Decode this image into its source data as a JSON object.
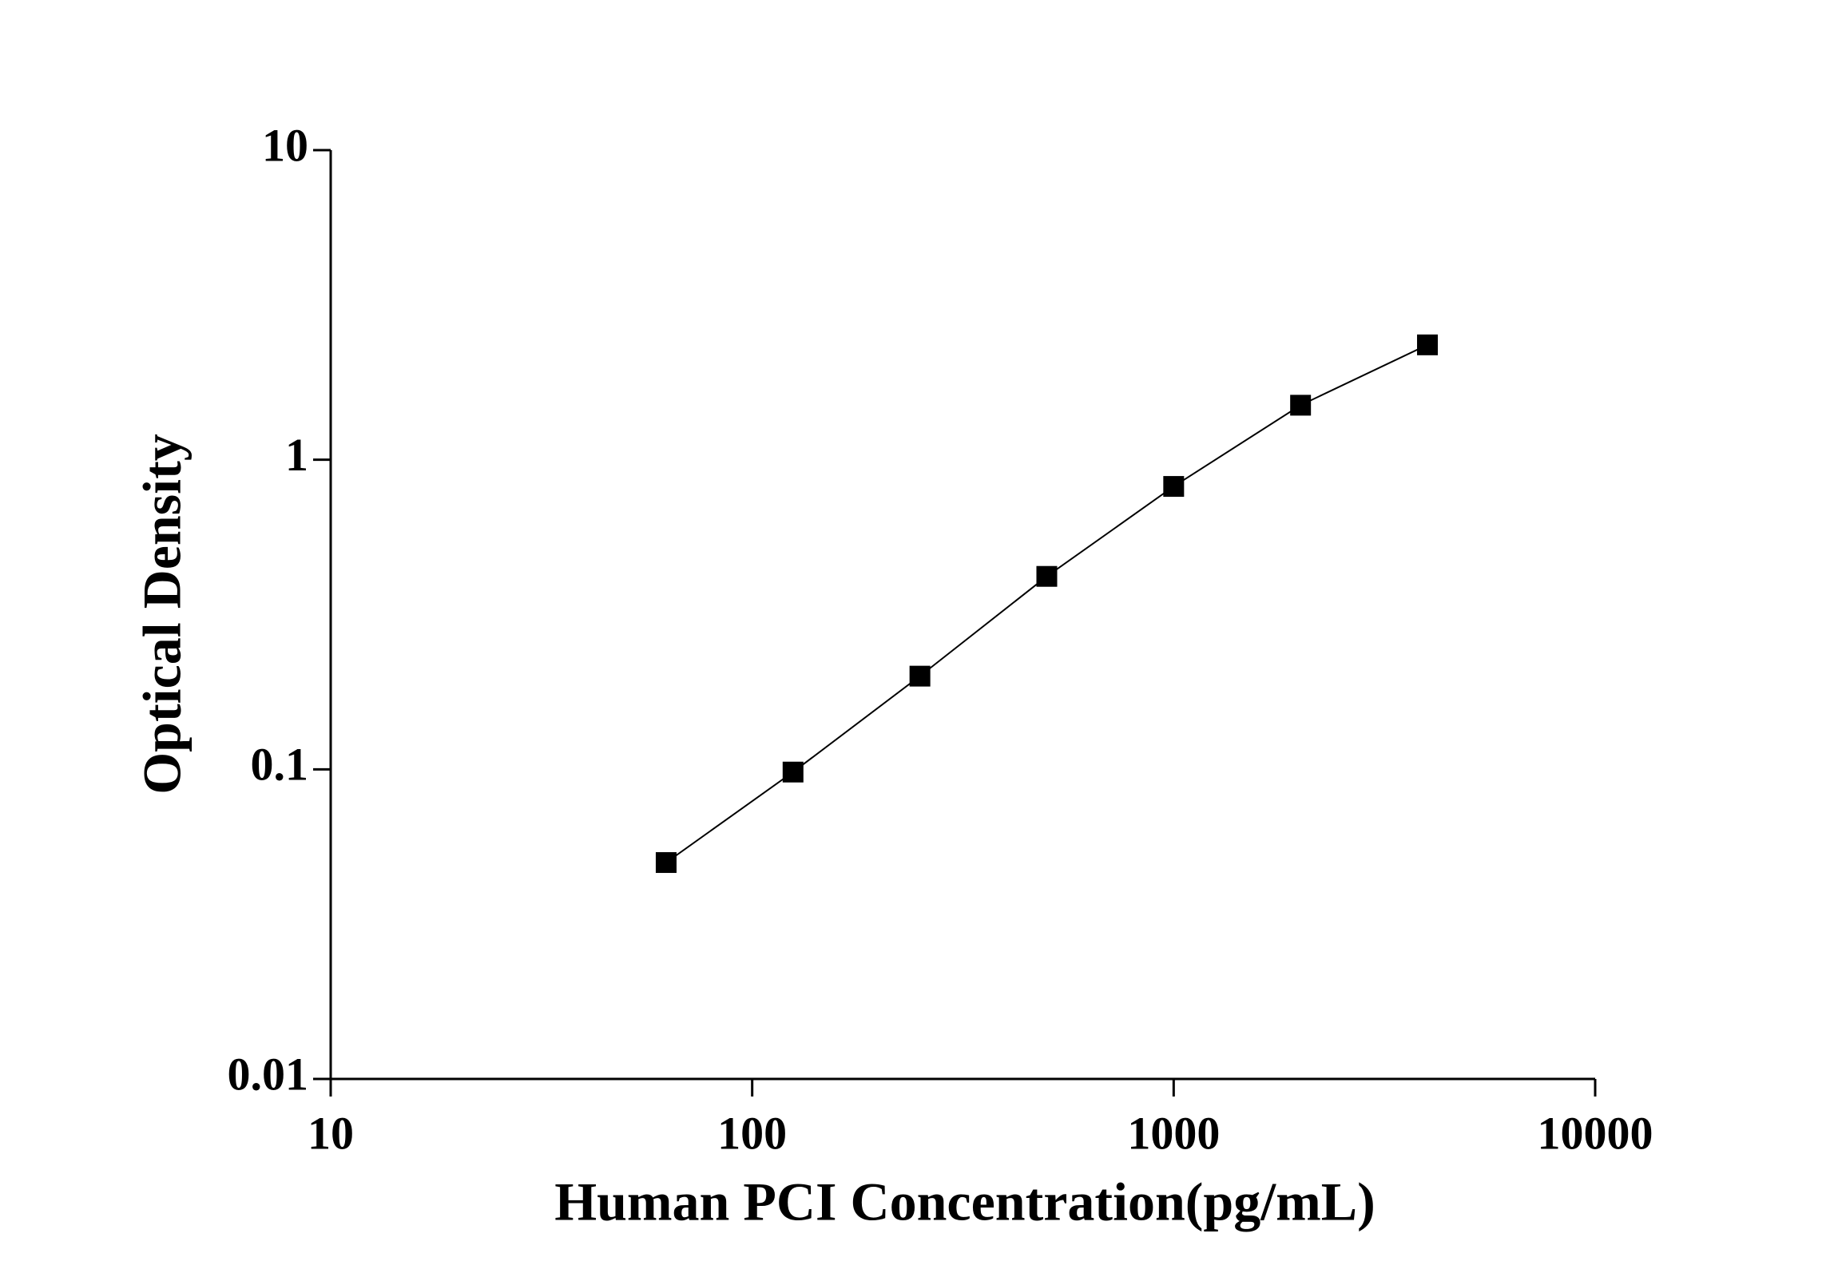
{
  "chart_data": {
    "type": "line",
    "x_label": "Human PCI Concentration(pg/mL)",
    "y_label": "Optical Density",
    "x": [
      62.5,
      125,
      250,
      500,
      1000,
      2000,
      4000
    ],
    "series": [
      {
        "values": [
          0.05,
          0.098,
          0.2,
          0.42,
          0.82,
          1.5,
          2.35
        ],
        "color": "#000000"
      }
    ],
    "x_log": true,
    "y_log": true,
    "xlim": [
      10,
      10000
    ],
    "xticks": [
      10,
      100,
      1000,
      10000
    ],
    "ylim": [
      0.01,
      10
    ],
    "yticks": [
      0.01,
      0.1,
      1,
      10
    ],
    "marker": "square"
  }
}
